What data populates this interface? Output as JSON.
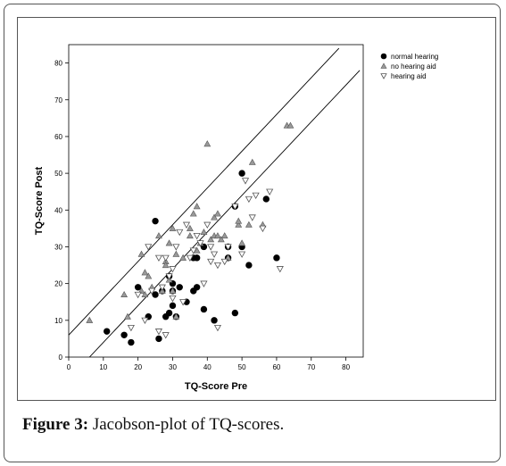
{
  "figure": {
    "label": "Figure 3:",
    "text": " Jacobson-plot of TQ-scores."
  },
  "chart_data": {
    "type": "scatter",
    "xlabel": "TQ-Score Pre",
    "ylabel": "TQ-Score Post",
    "xlim": [
      0,
      85
    ],
    "ylim": [
      0,
      85
    ],
    "xticks": [
      0,
      10,
      20,
      30,
      40,
      50,
      60,
      70,
      80
    ],
    "yticks": [
      0,
      10,
      20,
      30,
      40,
      50,
      60,
      70,
      80
    ],
    "grid": false,
    "legend_position": "top-right",
    "reference_lines": [
      {
        "slope": 1,
        "intercept": 6,
        "range": [
          0,
          78
        ]
      },
      {
        "slope": 1,
        "intercept": -6,
        "range": [
          6,
          84
        ]
      }
    ],
    "series": [
      {
        "name": "normal hearing",
        "marker": "filled-circle",
        "color": "#000000",
        "points": [
          [
            11,
            7
          ],
          [
            16,
            6
          ],
          [
            18,
            4
          ],
          [
            20,
            19
          ],
          [
            23,
            11
          ],
          [
            25,
            37
          ],
          [
            26,
            5
          ],
          [
            25,
            17
          ],
          [
            27,
            18
          ],
          [
            28,
            11
          ],
          [
            29,
            12
          ],
          [
            29,
            22
          ],
          [
            30,
            20
          ],
          [
            30,
            18
          ],
          [
            30,
            14
          ],
          [
            31,
            11
          ],
          [
            32,
            19
          ],
          [
            34,
            15
          ],
          [
            36,
            18
          ],
          [
            37,
            19
          ],
          [
            36,
            27
          ],
          [
            37,
            27
          ],
          [
            39,
            30
          ],
          [
            39,
            13
          ],
          [
            42,
            10
          ],
          [
            46,
            27
          ],
          [
            46,
            30
          ],
          [
            48,
            41
          ],
          [
            48,
            12
          ],
          [
            50,
            50
          ],
          [
            50,
            30
          ],
          [
            52,
            25
          ],
          [
            57,
            43
          ],
          [
            60,
            27
          ]
        ]
      },
      {
        "name": "no hearing aid",
        "marker": "triangle-up",
        "color": "#999999",
        "points": [
          [
            6,
            10
          ],
          [
            16,
            17
          ],
          [
            17,
            11
          ],
          [
            21,
            28
          ],
          [
            21,
            18
          ],
          [
            22,
            23
          ],
          [
            22,
            17
          ],
          [
            23,
            22
          ],
          [
            24,
            19
          ],
          [
            26,
            33
          ],
          [
            27,
            18
          ],
          [
            28,
            26
          ],
          [
            28,
            25
          ],
          [
            29,
            21
          ],
          [
            29,
            31
          ],
          [
            30,
            35
          ],
          [
            30,
            18
          ],
          [
            31,
            28
          ],
          [
            31,
            11
          ],
          [
            33,
            27
          ],
          [
            35,
            33
          ],
          [
            35,
            35
          ],
          [
            36,
            39
          ],
          [
            37,
            41
          ],
          [
            37,
            29
          ],
          [
            38,
            31
          ],
          [
            39,
            34
          ],
          [
            40,
            58
          ],
          [
            41,
            32
          ],
          [
            42,
            38
          ],
          [
            42,
            33
          ],
          [
            43,
            39
          ],
          [
            43,
            33
          ],
          [
            44,
            32
          ],
          [
            45,
            33
          ],
          [
            46,
            27
          ],
          [
            49,
            36
          ],
          [
            49,
            37
          ],
          [
            50,
            31
          ],
          [
            52,
            36
          ],
          [
            53,
            53
          ],
          [
            56,
            36
          ],
          [
            63,
            63
          ],
          [
            64,
            63
          ]
        ]
      },
      {
        "name": "hearing aid",
        "marker": "triangle-down",
        "color": "#555555",
        "points": [
          [
            18,
            8
          ],
          [
            20,
            17
          ],
          [
            22,
            10
          ],
          [
            23,
            30
          ],
          [
            24,
            18
          ],
          [
            26,
            27
          ],
          [
            26,
            7
          ],
          [
            27,
            19
          ],
          [
            28,
            27
          ],
          [
            28,
            6
          ],
          [
            29,
            22
          ],
          [
            30,
            16
          ],
          [
            30,
            24
          ],
          [
            31,
            30
          ],
          [
            32,
            34
          ],
          [
            33,
            15
          ],
          [
            34,
            36
          ],
          [
            35,
            27
          ],
          [
            36,
            29
          ],
          [
            37,
            33
          ],
          [
            38,
            31
          ],
          [
            39,
            20
          ],
          [
            40,
            36
          ],
          [
            41,
            26
          ],
          [
            41,
            30
          ],
          [
            42,
            28
          ],
          [
            43,
            25
          ],
          [
            43,
            8
          ],
          [
            45,
            26
          ],
          [
            46,
            30
          ],
          [
            48,
            41
          ],
          [
            50,
            28
          ],
          [
            51,
            48
          ],
          [
            52,
            43
          ],
          [
            53,
            38
          ],
          [
            54,
            44
          ],
          [
            56,
            35
          ],
          [
            58,
            45
          ],
          [
            61,
            24
          ]
        ]
      }
    ]
  }
}
